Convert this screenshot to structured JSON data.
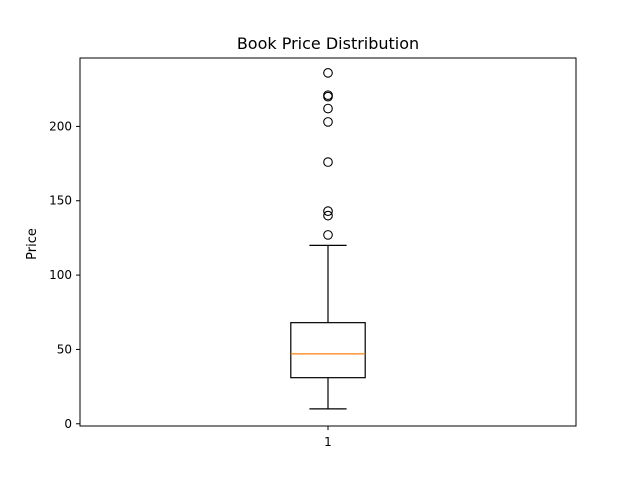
{
  "chart_data": {
    "type": "box",
    "title": "Book Price Distribution",
    "xlabel": "",
    "ylabel": "Price",
    "categories": [
      "1"
    ],
    "ylim": [
      -1.5,
      246
    ],
    "yticks": [
      0,
      50,
      100,
      150,
      200
    ],
    "xlim": [
      0.5,
      1.5
    ],
    "grid": false,
    "boxes": [
      {
        "position": 1,
        "whisker_low": 10,
        "q1": 31,
        "median": 47,
        "q3": 68,
        "whisker_high": 120,
        "outliers": [
          127,
          140,
          143,
          176,
          203,
          212,
          220,
          221,
          236
        ]
      }
    ],
    "colors": {
      "box": "#000000",
      "median": "#ff7f0e",
      "outlier": "#000000"
    }
  }
}
